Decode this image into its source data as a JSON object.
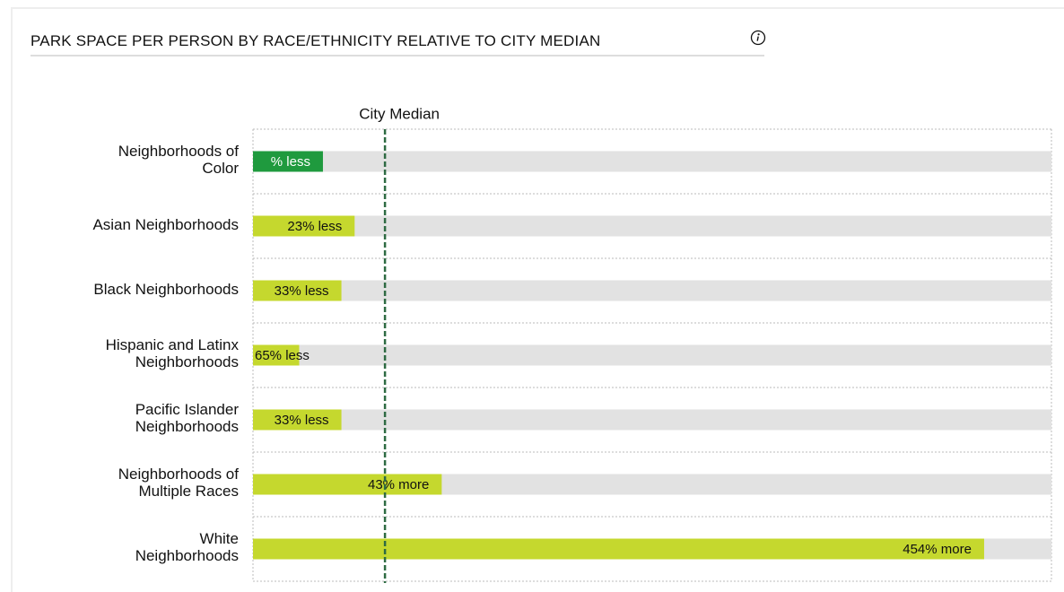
{
  "chart_data": {
    "type": "bar",
    "orientation": "horizontal",
    "title": "PARK SPACE PER PERSON BY RACE/ETHNICITY RELATIVE TO CITY MEDIAN",
    "annotation": "City Median",
    "categories": [
      "Neighborhoods of\nColor",
      "Asian Neighborhoods",
      "Black Neighborhoods",
      "Hispanic and Latinx\nNeighborhoods",
      "Pacific Islander\nNeighborhoods",
      "Neighborhoods of\nMultiple Races",
      "White\nNeighborhoods"
    ],
    "values": [
      -47,
      -23,
      -33,
      -65,
      -33,
      43,
      454
    ],
    "value_labels": [
      "% less",
      "23% less",
      "33% less",
      "65% less",
      "33% less",
      "43% more",
      "454% more"
    ],
    "colors": [
      "#1f9a3e",
      "#c5d82e",
      "#c5d82e",
      "#c5d82e",
      "#c5d82e",
      "#c5d82e",
      "#c5d82e"
    ],
    "median": 0,
    "xlim": [
      -100,
      505
    ]
  }
}
